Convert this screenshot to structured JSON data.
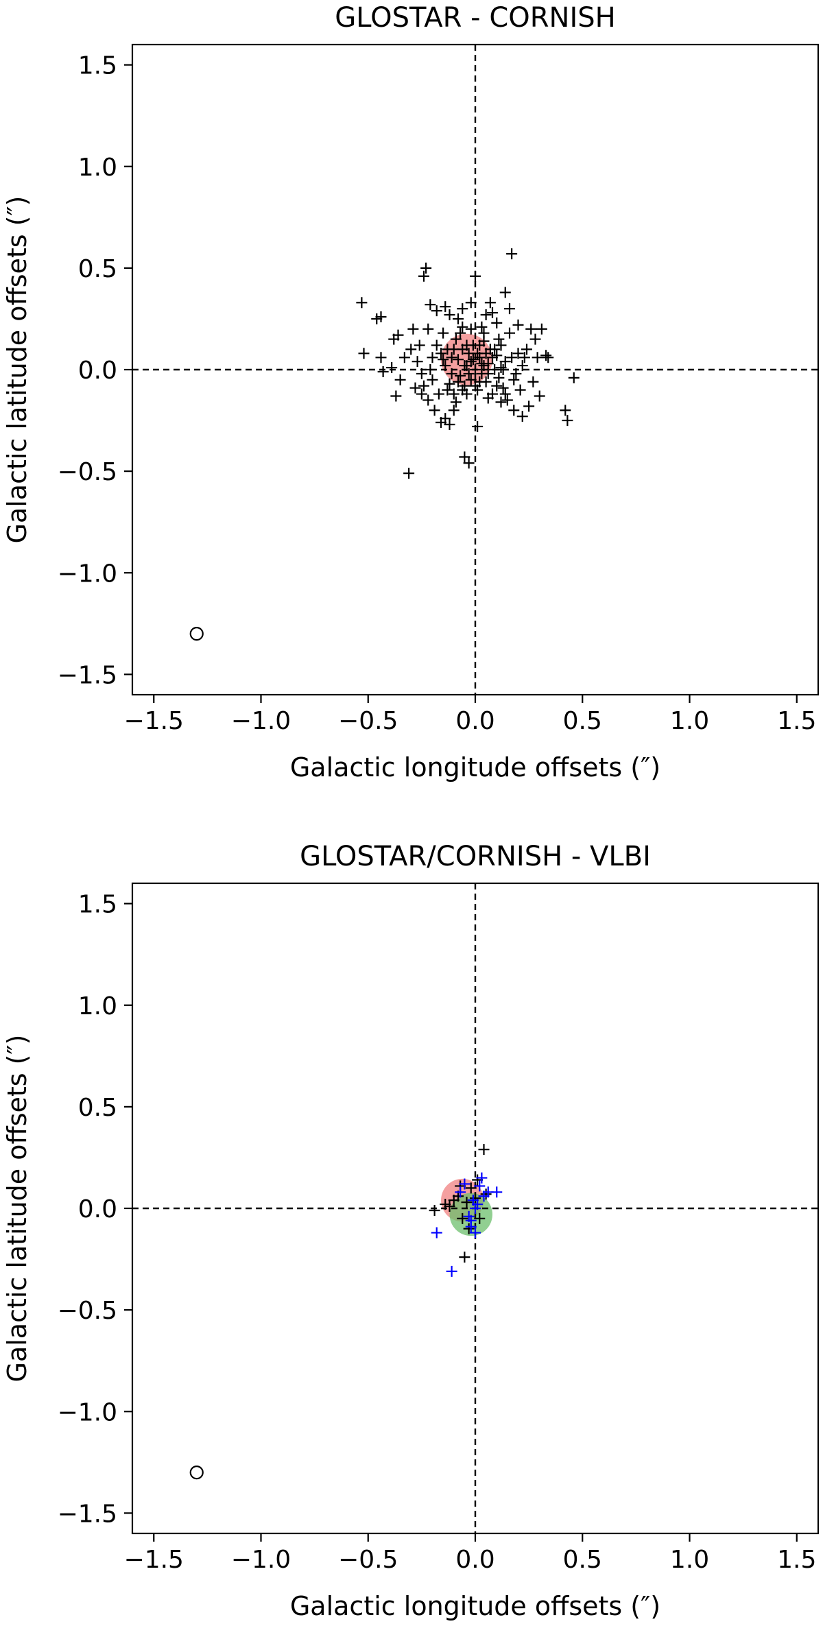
{
  "figure": {
    "panels": [
      {
        "title": "GLOSTAR - CORNISH",
        "xlabel": "Galactic longitude offsets (″)",
        "ylabel": "Galactic latitude offsets (″)"
      },
      {
        "title": "GLOSTAR/CORNISH - VLBI",
        "xlabel": "Galactic longitude offsets (″)",
        "ylabel": "Galactic latitude offsets (″)"
      }
    ]
  },
  "chart_data": [
    {
      "type": "scatter",
      "title": "GLOSTAR - CORNISH",
      "xlabel": "Galactic longitude offsets (″)",
      "ylabel": "Galactic latitude offsets (″)",
      "xlim": [
        -1.6,
        1.6
      ],
      "ylim": [
        -1.6,
        1.6
      ],
      "xticks": [
        -1.5,
        -1.0,
        -0.5,
        0.0,
        0.5,
        1.0,
        1.5
      ],
      "yticks": [
        -1.5,
        -1.0,
        -0.5,
        0.0,
        0.5,
        1.0,
        1.5
      ],
      "xtick_labels": [
        "−1.5",
        "−1.0",
        "−0.5",
        "0.0",
        "0.5",
        "1.0",
        "1.5"
      ],
      "ytick_labels": [
        "−1.5",
        "−1.0",
        "−0.5",
        "0.0",
        "0.5",
        "1.0",
        "1.5"
      ],
      "grid": false,
      "reference_lines": {
        "x": 0,
        "y": 0,
        "style": "dashed",
        "color": "#000000"
      },
      "mean_circles": [
        {
          "x": -0.04,
          "y": 0.05,
          "r": 0.12,
          "color": "#f08080"
        }
      ],
      "beam_marker": {
        "x": -1.3,
        "y": -1.3,
        "r": 0.03
      },
      "series": [
        {
          "marker": "plus",
          "color": "#000000",
          "points": [
            [
              -0.53,
              0.33
            ],
            [
              -0.46,
              0.25
            ],
            [
              -0.44,
              0.26
            ],
            [
              -0.52,
              0.08
            ],
            [
              -0.44,
              0.06
            ],
            [
              -0.43,
              -0.01
            ],
            [
              -0.39,
              0.01
            ],
            [
              -0.38,
              0.15
            ],
            [
              -0.36,
              0.17
            ],
            [
              -0.37,
              -0.13
            ],
            [
              -0.31,
              -0.51
            ],
            [
              -0.24,
              0.46
            ],
            [
              -0.23,
              0.5
            ],
            [
              -0.21,
              0.32
            ],
            [
              -0.18,
              0.29
            ],
            [
              -0.14,
              0.31
            ],
            [
              -0.12,
              0.27
            ],
            [
              -0.08,
              0.25
            ],
            [
              -0.06,
              0.21
            ],
            [
              -0.02,
              0.33
            ],
            [
              0.0,
              0.46
            ],
            [
              0.03,
              0.21
            ],
            [
              0.05,
              0.27
            ],
            [
              0.07,
              0.33
            ],
            [
              0.08,
              0.28
            ],
            [
              0.1,
              0.23
            ],
            [
              0.14,
              0.38
            ],
            [
              0.16,
              0.3
            ],
            [
              0.17,
              0.57
            ],
            [
              -0.3,
              0.1
            ],
            [
              -0.27,
              0.04
            ],
            [
              -0.25,
              -0.02
            ],
            [
              -0.28,
              -0.09
            ],
            [
              -0.25,
              -0.12
            ],
            [
              -0.22,
              -0.15
            ],
            [
              -0.2,
              -0.05
            ],
            [
              -0.18,
              0.12
            ],
            [
              -0.16,
              0.08
            ],
            [
              -0.14,
              0.02
            ],
            [
              -0.12,
              -0.07
            ],
            [
              -0.1,
              -0.12
            ],
            [
              -0.09,
              0.15
            ],
            [
              -0.08,
              0.05
            ],
            [
              -0.07,
              -0.03
            ],
            [
              -0.06,
              0.1
            ],
            [
              -0.05,
              -0.08
            ],
            [
              -0.04,
              0.02
            ],
            [
              -0.03,
              0.08
            ],
            [
              -0.02,
              -0.05
            ],
            [
              -0.01,
              0.12
            ],
            [
              0.0,
              0.0
            ],
            [
              0.01,
              -0.1
            ],
            [
              0.02,
              0.06
            ],
            [
              0.03,
              -0.02
            ],
            [
              0.04,
              0.14
            ],
            [
              0.05,
              -0.06
            ],
            [
              0.06,
              0.03
            ],
            [
              0.07,
              0.1
            ],
            [
              0.08,
              -0.12
            ],
            [
              0.09,
              0.0
            ],
            [
              0.1,
              0.07
            ],
            [
              0.11,
              -0.04
            ],
            [
              0.12,
              0.12
            ],
            [
              0.13,
              -0.09
            ],
            [
              0.14,
              0.04
            ],
            [
              0.15,
              -0.15
            ],
            [
              0.16,
              0.18
            ],
            [
              0.18,
              -0.05
            ],
            [
              0.2,
              0.08
            ],
            [
              0.21,
              -0.1
            ],
            [
              0.22,
              0.02
            ],
            [
              0.24,
              0.1
            ],
            [
              0.25,
              -0.18
            ],
            [
              0.26,
              0.2
            ],
            [
              0.27,
              -0.06
            ],
            [
              0.28,
              0.15
            ],
            [
              0.3,
              -0.13
            ],
            [
              0.31,
              0.2
            ],
            [
              0.33,
              0.07
            ],
            [
              0.34,
              0.06
            ],
            [
              0.42,
              -0.2
            ],
            [
              0.43,
              -0.25
            ],
            [
              0.46,
              -0.04
            ],
            [
              -0.16,
              -0.26
            ],
            [
              -0.14,
              -0.24
            ],
            [
              -0.12,
              -0.27
            ],
            [
              -0.1,
              -0.2
            ],
            [
              -0.05,
              -0.43
            ],
            [
              -0.03,
              -0.46
            ],
            [
              0.01,
              -0.28
            ],
            [
              0.12,
              -0.16
            ],
            [
              0.18,
              -0.2
            ],
            [
              0.22,
              -0.23
            ],
            [
              -0.24,
              -0.08
            ],
            [
              -0.21,
              0.0
            ],
            [
              -0.19,
              -0.2
            ],
            [
              -0.15,
              0.18
            ],
            [
              -0.13,
              -0.1
            ],
            [
              -0.11,
              0.06
            ],
            [
              -0.09,
              -0.16
            ],
            [
              -0.07,
              0.18
            ],
            [
              -0.05,
              0.02
            ],
            [
              -0.04,
              -0.12
            ],
            [
              -0.02,
              0.04
            ],
            [
              0.01,
              0.08
            ],
            [
              0.02,
              -0.06
            ],
            [
              0.04,
              0.02
            ],
            [
              0.06,
              -0.14
            ],
            [
              0.08,
              0.06
            ],
            [
              0.1,
              -0.08
            ],
            [
              0.12,
              0.01
            ],
            [
              0.14,
              -0.12
            ],
            [
              -0.33,
              0.06
            ],
            [
              -0.35,
              -0.05
            ],
            [
              -0.29,
              0.2
            ],
            [
              -0.26,
              0.12
            ],
            [
              -0.2,
              0.06
            ],
            [
              -0.17,
              -0.12
            ],
            [
              -0.15,
              0.05
            ],
            [
              -0.13,
              0.1
            ],
            [
              -0.11,
              -0.02
            ],
            [
              -0.1,
              0.1
            ],
            [
              -0.08,
              -0.06
            ],
            [
              -0.06,
              -0.1
            ],
            [
              -0.04,
              0.12
            ],
            [
              -0.03,
              -0.02
            ],
            [
              -0.01,
              0.05
            ],
            [
              0.0,
              -0.08
            ],
            [
              0.02,
              0.12
            ],
            [
              0.03,
              0.03
            ],
            [
              0.05,
              0.08
            ],
            [
              0.06,
              -0.02
            ],
            [
              0.09,
              0.1
            ],
            [
              0.11,
              0.15
            ],
            [
              0.13,
              0.0
            ],
            [
              0.17,
              0.06
            ],
            [
              0.19,
              -0.02
            ],
            [
              0.23,
              0.06
            ],
            [
              -0.06,
              0.3
            ],
            [
              -0.02,
              0.2
            ],
            [
              0.04,
              0.18
            ],
            [
              -0.22,
              0.2
            ],
            [
              0.2,
              0.22
            ],
            [
              0.29,
              0.06
            ]
          ]
        }
      ]
    },
    {
      "type": "scatter",
      "title": "GLOSTAR/CORNISH - VLBI",
      "xlabel": "Galactic longitude offsets (″)",
      "ylabel": "Galactic latitude offsets (″)",
      "xlim": [
        -1.6,
        1.6
      ],
      "ylim": [
        -1.6,
        1.6
      ],
      "xticks": [
        -1.5,
        -1.0,
        -0.5,
        0.0,
        0.5,
        1.0,
        1.5
      ],
      "yticks": [
        -1.5,
        -1.0,
        -0.5,
        0.0,
        0.5,
        1.0,
        1.5
      ],
      "xtick_labels": [
        "−1.5",
        "−1.0",
        "−0.5",
        "0.0",
        "0.5",
        "1.0",
        "1.5"
      ],
      "ytick_labels": [
        "−1.5",
        "−1.0",
        "−0.5",
        "0.0",
        "0.5",
        "1.0",
        "1.5"
      ],
      "grid": false,
      "reference_lines": {
        "x": 0,
        "y": 0,
        "style": "dashed",
        "color": "#000000"
      },
      "mean_circles": [
        {
          "x": -0.06,
          "y": 0.04,
          "r": 0.1,
          "color": "#f08080"
        },
        {
          "x": -0.02,
          "y": -0.03,
          "r": 0.1,
          "color": "#6cbf6c"
        }
      ],
      "beam_marker": {
        "x": -1.3,
        "y": -1.3,
        "r": 0.03
      },
      "series": [
        {
          "marker": "plus",
          "color": "#000000",
          "points": [
            [
              -0.19,
              -0.01
            ],
            [
              -0.14,
              0.02
            ],
            [
              -0.12,
              0.01
            ],
            [
              -0.1,
              0.04
            ],
            [
              -0.08,
              0.06
            ],
            [
              -0.06,
              -0.05
            ],
            [
              -0.05,
              -0.24
            ],
            [
              -0.04,
              0.03
            ],
            [
              -0.02,
              0.1
            ],
            [
              0.0,
              0.05
            ],
            [
              0.02,
              -0.05
            ],
            [
              0.04,
              0.29
            ],
            [
              0.05,
              0.07
            ],
            [
              -0.07,
              0.11
            ],
            [
              -0.03,
              -0.1
            ],
            [
              0.01,
              0.14
            ]
          ]
        },
        {
          "marker": "plus",
          "color": "#0000ff",
          "points": [
            [
              -0.18,
              -0.12
            ],
            [
              -0.11,
              -0.31
            ],
            [
              -0.07,
              0.08
            ],
            [
              -0.05,
              0.12
            ],
            [
              -0.03,
              -0.04
            ],
            [
              -0.02,
              -0.09
            ],
            [
              -0.01,
              0.04
            ],
            [
              0.0,
              -0.12
            ],
            [
              0.01,
              0.02
            ],
            [
              0.02,
              0.11
            ],
            [
              0.03,
              0.15
            ],
            [
              0.04,
              0.06
            ],
            [
              0.06,
              0.08
            ],
            [
              0.1,
              0.08
            ],
            [
              -0.02,
              -0.06
            ],
            [
              0.0,
              0.0
            ]
          ]
        }
      ]
    }
  ]
}
